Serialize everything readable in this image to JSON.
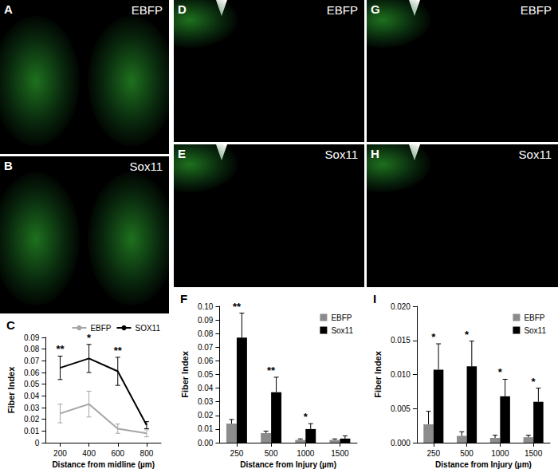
{
  "image_panels": [
    {
      "panel": "A",
      "label": "EBFP"
    },
    {
      "panel": "B",
      "label": "Sox11"
    },
    {
      "panel": "D",
      "label": "EBFP"
    },
    {
      "panel": "E",
      "label": "Sox11"
    },
    {
      "panel": "G",
      "label": "EBFP"
    },
    {
      "panel": "H",
      "label": "Sox11"
    }
  ],
  "chart_data": [
    {
      "panel": "C",
      "type": "line",
      "categories": [
        "200",
        "400",
        "600",
        "800"
      ],
      "series": [
        {
          "name": "EBFP",
          "color": "#a6a6a6",
          "values": [
            0.025,
            0.033,
            0.012,
            0.008
          ],
          "errors": [
            0.008,
            0.011,
            0.004,
            0.003
          ]
        },
        {
          "name": "SOX11",
          "color": "#000000",
          "values": [
            0.064,
            0.072,
            0.061,
            0.015
          ],
          "errors": [
            0.01,
            0.012,
            0.012,
            0.003
          ]
        }
      ],
      "marker": "none",
      "x_label": "Distance from midline (µm)",
      "y_label": "Fiber Index",
      "ylim": [
        0,
        0.09
      ],
      "yticks": [
        0,
        0.01,
        0.02,
        0.03,
        0.04,
        0.05,
        0.06,
        0.07,
        0.08,
        0.09
      ],
      "grid": false,
      "legend": "upper right",
      "annotations": [
        {
          "category": "200",
          "text": "**"
        },
        {
          "category": "400",
          "text": "*"
        },
        {
          "category": "600",
          "text": "**"
        }
      ]
    },
    {
      "panel": "F",
      "type": "bar",
      "categories": [
        "250",
        "500",
        "1000",
        "1500"
      ],
      "series": [
        {
          "name": "EBFP",
          "color": "#8c8c8c",
          "values": [
            0.014,
            0.007,
            0.002,
            0.002
          ],
          "errors": [
            0.003,
            0.0015,
            0.0008,
            0.0008
          ]
        },
        {
          "name": "Sox11",
          "color": "#000000",
          "values": [
            0.077,
            0.037,
            0.01,
            0.003
          ],
          "errors": [
            0.018,
            0.011,
            0.004,
            0.002
          ]
        }
      ],
      "x_label": "Distance from Injury (µm)",
      "y_label": "Fiber Index",
      "ylim": [
        0,
        0.1
      ],
      "yticks": [
        {
          "value": 0,
          "label": "0.00"
        },
        {
          "value": 0.01,
          "label": "0.01"
        },
        {
          "value": 0.02,
          "label": "0.02"
        },
        {
          "value": 0.03,
          "label": "0.03"
        },
        {
          "value": 0.04,
          "label": "0.04"
        },
        {
          "value": 0.05,
          "label": "0.05"
        },
        {
          "value": 0.06,
          "label": "0.06"
        },
        {
          "value": 0.07,
          "label": "0.07"
        },
        {
          "value": 0.08,
          "label": "0.08"
        },
        {
          "value": 0.09,
          "label": "0.09"
        },
        {
          "value": 0.1,
          "label": "0.10"
        }
      ],
      "grid": false,
      "legend": "upper right",
      "annotations": [
        {
          "category": "250",
          "text": "**"
        },
        {
          "category": "500",
          "text": "**"
        },
        {
          "category": "1000",
          "text": "*"
        }
      ]
    },
    {
      "panel": "I",
      "type": "bar",
      "categories": [
        "250",
        "500",
        "1000",
        "1500"
      ],
      "series": [
        {
          "name": "EBFP",
          "color": "#8c8c8c",
          "values": [
            0.0027,
            0.001,
            0.0007,
            0.0008
          ],
          "errors": [
            0.0019,
            0.0006,
            0.0004,
            0.0003
          ]
        },
        {
          "name": "Sox11",
          "color": "#000000",
          "values": [
            0.0107,
            0.0112,
            0.0068,
            0.006
          ],
          "errors": [
            0.0038,
            0.0037,
            0.0025,
            0.002
          ]
        }
      ],
      "x_label": "Distance from Injury (µm)",
      "y_label": "Fiber Index",
      "ylim": [
        0,
        0.02
      ],
      "yticks": [
        {
          "value": 0,
          "label": "0.000"
        },
        {
          "value": 0.005,
          "label": "0.005"
        },
        {
          "value": 0.01,
          "label": "0.010"
        },
        {
          "value": 0.015,
          "label": "0.015"
        },
        {
          "value": 0.02,
          "label": "0.020"
        }
      ],
      "grid": false,
      "legend": "upper right",
      "annotations": [
        {
          "category": "250",
          "text": "*"
        },
        {
          "category": "500",
          "text": "*"
        },
        {
          "category": "1000",
          "text": "*"
        },
        {
          "category": "1500",
          "text": "*"
        }
      ]
    }
  ]
}
